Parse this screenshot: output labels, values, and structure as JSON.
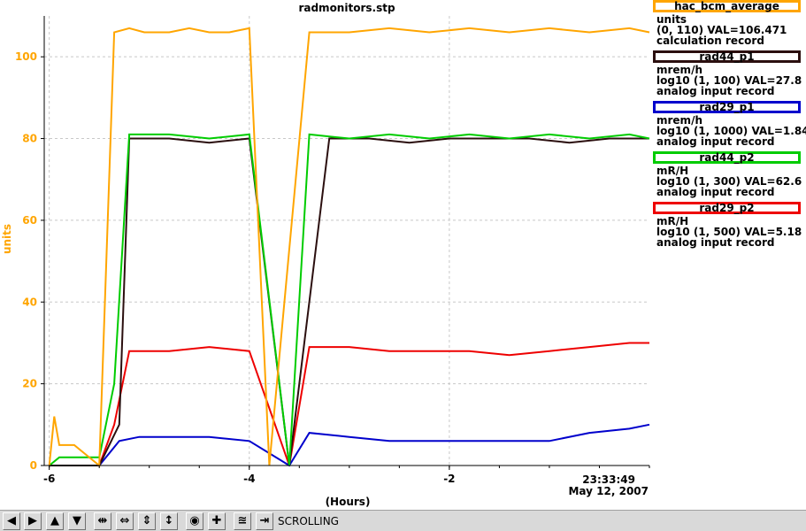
{
  "chart_data": {
    "type": "line",
    "title": "radmonitors.stp",
    "xlabel": "(Hours)",
    "ylabel": "units",
    "x_ticks": [
      "-6",
      "-4",
      "-2"
    ],
    "y_ticks": [
      "0",
      "20",
      "40",
      "60",
      "80",
      "100"
    ],
    "xlim": [
      -6.05,
      0
    ],
    "ylim": [
      0,
      110
    ],
    "grid": true,
    "legend_position": "right",
    "end_time": "23:33:49",
    "end_date": "May 12, 2007",
    "series": [
      {
        "name": "hac_bcm_average",
        "color": "#ffa500",
        "units": "units",
        "range": "(0, 110) VAL=106.471",
        "record": "calculation record",
        "x": [
          -6.0,
          -5.95,
          -5.9,
          -5.85,
          -5.75,
          -5.5,
          -5.35,
          -5.2,
          -5.05,
          -4.8,
          -4.6,
          -4.4,
          -4.2,
          -4.0,
          -3.8,
          -3.4,
          -3.0,
          -2.6,
          -2.2,
          -1.8,
          -1.4,
          -1.0,
          -0.6,
          -0.2,
          0.0
        ],
        "y": [
          0,
          12,
          5,
          5,
          5,
          0,
          106,
          107,
          106,
          106,
          107,
          106,
          106,
          107,
          0,
          106,
          106,
          107,
          106,
          107,
          106,
          107,
          106,
          107,
          106
        ]
      },
      {
        "name": "rad44_p1",
        "color": "#2b0f0f",
        "units": "mrem/h",
        "range": "log10 (1, 100) VAL=27.8",
        "record": "analog input record",
        "x": [
          -6.0,
          -5.5,
          -5.3,
          -5.2,
          -4.8,
          -4.4,
          -4.0,
          -3.6,
          -3.2,
          -2.8,
          -2.4,
          -2.0,
          -1.6,
          -1.2,
          -0.8,
          -0.4,
          0.0
        ],
        "y": [
          0,
          0,
          10,
          80,
          80,
          79,
          80,
          0,
          80,
          80,
          79,
          80,
          80,
          80,
          79,
          80,
          80
        ]
      },
      {
        "name": "rad29_p1",
        "color": "#0000cc",
        "units": "mrem/h",
        "range": "log10 (1, 1000) VAL=1.84",
        "record": "analog input record",
        "x": [
          -6.0,
          -5.5,
          -5.3,
          -5.1,
          -4.8,
          -4.4,
          -4.0,
          -3.6,
          -3.4,
          -3.0,
          -2.6,
          -2.2,
          -1.8,
          -1.4,
          -1.0,
          -0.6,
          -0.2,
          0.0
        ],
        "y": [
          0,
          0,
          6,
          7,
          7,
          7,
          6,
          0,
          8,
          7,
          6,
          6,
          6,
          6,
          6,
          8,
          9,
          10
        ]
      },
      {
        "name": "rad44_p2",
        "color": "#00cc00",
        "units": "mR/H",
        "range": "log10 (1, 300) VAL=62.6",
        "record": "analog input record",
        "x": [
          -6.0,
          -5.9,
          -5.5,
          -5.35,
          -5.2,
          -4.8,
          -4.4,
          -4.0,
          -3.6,
          -3.4,
          -3.0,
          -2.6,
          -2.2,
          -1.8,
          -1.4,
          -1.0,
          -0.6,
          -0.2,
          0.0
        ],
        "y": [
          0,
          2,
          2,
          20,
          81,
          81,
          80,
          81,
          0,
          81,
          80,
          81,
          80,
          81,
          80,
          81,
          80,
          81,
          80
        ]
      },
      {
        "name": "rad29_p2",
        "color": "#ee0000",
        "units": "mR/H",
        "range": "log10 (1, 500) VAL=5.18",
        "record": "analog input record",
        "x": [
          -6.0,
          -5.5,
          -5.35,
          -5.2,
          -4.8,
          -4.4,
          -4.0,
          -3.6,
          -3.4,
          -3.0,
          -2.6,
          -2.2,
          -1.8,
          -1.4,
          -1.0,
          -0.6,
          -0.2,
          0.0
        ],
        "y": [
          0,
          0,
          10,
          28,
          28,
          29,
          28,
          0,
          29,
          29,
          28,
          28,
          28,
          27,
          28,
          29,
          30,
          30
        ]
      }
    ]
  },
  "legend": [
    {
      "title": "hac_bcm_average",
      "color": "#ffa500",
      "line1": "units",
      "line2": "(0, 110) VAL=106.471",
      "line3": "calculation record"
    },
    {
      "title": "rad44_p1",
      "color": "#2b0f0f",
      "line1": "mrem/h",
      "line2": "log10 (1, 100) VAL=27.8",
      "line3": "analog input record"
    },
    {
      "title": "rad29_p1",
      "color": "#0000cc",
      "line1": "mrem/h",
      "line2": "log10 (1, 1000) VAL=1.84",
      "line3": "analog input record"
    },
    {
      "title": "rad44_p2",
      "color": "#00cc00",
      "line1": "mR/H",
      "line2": "log10 (1, 300) VAL=62.6",
      "line3": "analog input record"
    },
    {
      "title": "rad29_p2",
      "color": "#ee0000",
      "line1": "mR/H",
      "line2": "log10 (1, 500) VAL=5.18",
      "line3": "analog input record"
    }
  ],
  "toolbar": {
    "mode_label": "SCROLLING",
    "buttons": [
      {
        "name": "scroll-left-icon",
        "glyph": "◀"
      },
      {
        "name": "scroll-right-icon",
        "glyph": "▶"
      },
      {
        "name": "scroll-up-icon",
        "glyph": "▲"
      },
      {
        "name": "scroll-down-icon",
        "glyph": "▼"
      },
      {
        "name": "expand-horizontal-icon",
        "glyph": "⇹"
      },
      {
        "name": "compress-horizontal-icon",
        "glyph": "⇔"
      },
      {
        "name": "expand-vertical-icon",
        "glyph": "⇕"
      },
      {
        "name": "compress-vertical-icon",
        "glyph": "↕"
      },
      {
        "name": "center-icon",
        "glyph": "◉"
      },
      {
        "name": "zoom-in-icon",
        "glyph": "✚"
      },
      {
        "name": "autoscale-icon",
        "glyph": "≊"
      },
      {
        "name": "jump-to-now-icon",
        "glyph": "⇥"
      }
    ]
  }
}
